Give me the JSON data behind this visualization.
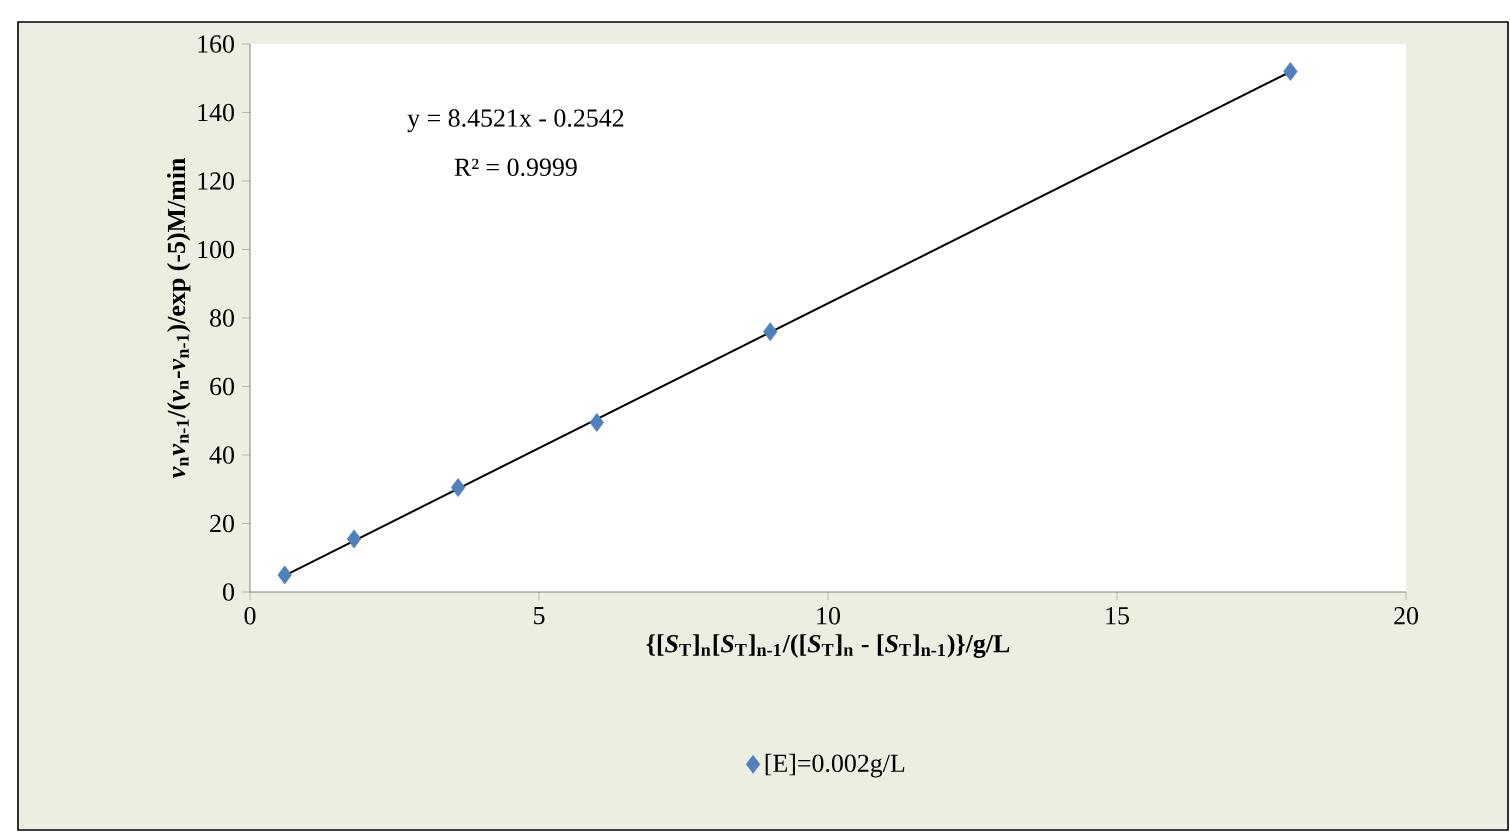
{
  "chart_data": {
    "type": "scatter",
    "xlabel": "{[*S*$_{T}$]$_{n}$[*S*$_{T}$]$_{n-1}$/([*S*$_{T}$]$_{n}$ - [*S*$_{T}$]$_{n-1}$)}/g/L",
    "ylabel": "*v*$_{n}$*v*$_{n-1}$/(*v*$_{n}$-*v*$_{n-1}$)/exp (-5)M/min",
    "annotations": [
      "y = 8.4521x - 0.2542",
      "R² = 0.9999"
    ],
    "xlim": [
      0,
      20
    ],
    "xticks": [
      0,
      5,
      10,
      15,
      20
    ],
    "ylim": [
      0,
      160
    ],
    "yticks": [
      0,
      20,
      40,
      60,
      80,
      100,
      120,
      140,
      160
    ],
    "grid": false,
    "legend": "bottom",
    "marker": "diamond",
    "series": [
      {
        "name": "[E]=0.002g/L",
        "color": "#4f81bd",
        "x": [
          0.6,
          1.8,
          3.6,
          6,
          9,
          18
        ],
        "values": [
          5,
          15.5,
          30.5,
          49.5,
          76,
          152
        ]
      },
      {
        "type": "line",
        "color": "#000000",
        "marker": "none",
        "x": [
          0.6,
          18
        ],
        "values": [
          4.8,
          151.9
        ]
      }
    ]
  }
}
